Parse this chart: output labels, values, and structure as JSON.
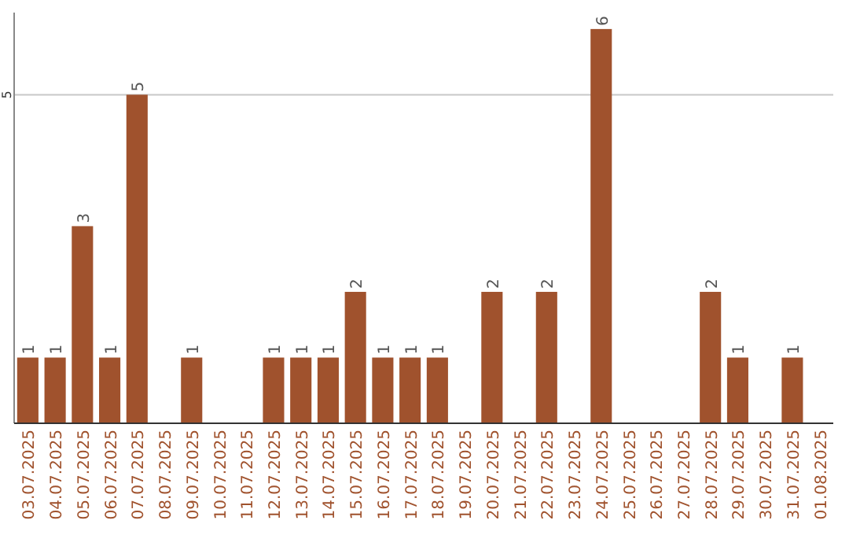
{
  "chart_data": {
    "type": "bar",
    "categories": [
      "03.07.2025",
      "04.07.2025",
      "05.07.2025",
      "06.07.2025",
      "07.07.2025",
      "08.07.2025",
      "09.07.2025",
      "10.07.2025",
      "11.07.2025",
      "12.07.2025",
      "13.07.2025",
      "14.07.2025",
      "15.07.2025",
      "16.07.2025",
      "17.07.2025",
      "18.07.2025",
      "19.07.2025",
      "20.07.2025",
      "21.07.2025",
      "22.07.2025",
      "23.07.2025",
      "24.07.2025",
      "25.07.2025",
      "26.07.2025",
      "27.07.2025",
      "28.07.2025",
      "29.07.2025",
      "30.07.2025",
      "31.07.2025",
      "01.08.2025"
    ],
    "values": [
      1,
      1,
      3,
      1,
      5,
      0,
      1,
      0,
      0,
      1,
      1,
      1,
      2,
      1,
      1,
      1,
      0,
      2,
      0,
      2,
      0,
      6,
      0,
      0,
      0,
      2,
      1,
      0,
      1,
      0
    ],
    "value_labels": [
      "1",
      "1",
      "3",
      "1",
      "5",
      null,
      "1",
      null,
      null,
      "1",
      "1",
      "1",
      "2",
      "1",
      "1",
      "1",
      null,
      "2",
      null,
      "2",
      null,
      "6",
      null,
      null,
      null,
      "2",
      "1",
      null,
      "1",
      null
    ],
    "color": "#a0522d",
    "ylim": [
      0,
      6.25
    ],
    "yticks": [
      5
    ],
    "grid": "y"
  }
}
